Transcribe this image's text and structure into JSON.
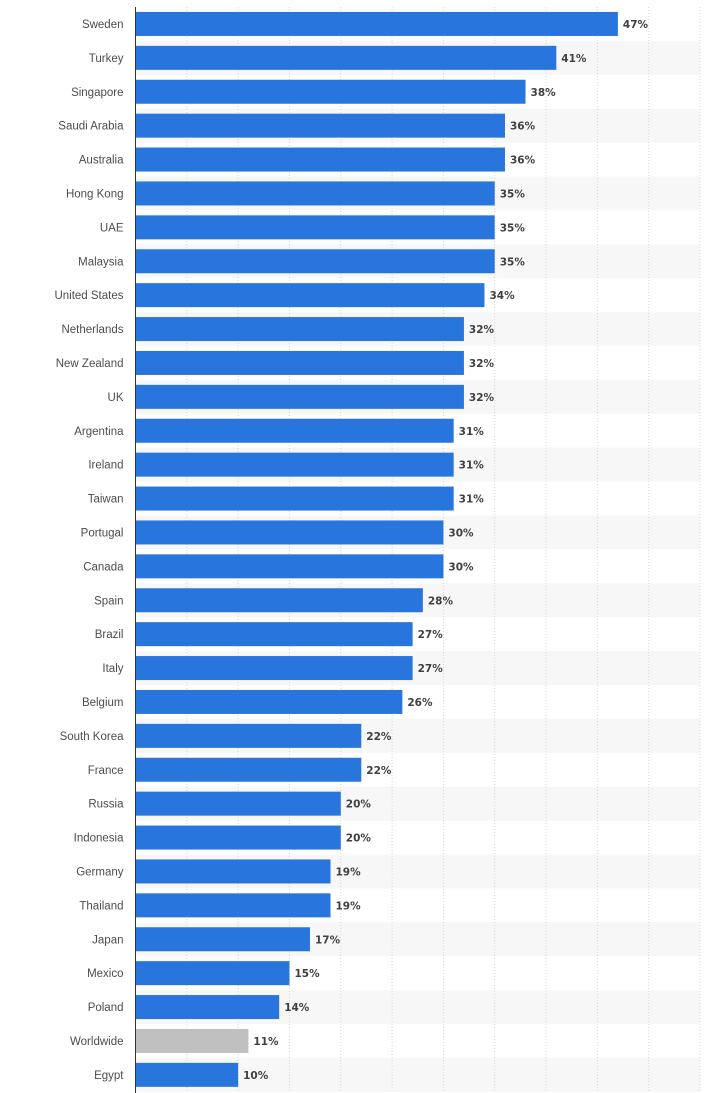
{
  "chart_data": {
    "type": "bar",
    "orientation": "horizontal",
    "categories": [
      "Sweden",
      "Turkey",
      "Singapore",
      "Saudi Arabia",
      "Australia",
      "Hong Kong",
      "UAE",
      "Malaysia",
      "United States",
      "Netherlands",
      "New Zealand",
      "UK",
      "Argentina",
      "Ireland",
      "Taiwan",
      "Portugal",
      "Canada",
      "Spain",
      "Brazil",
      "Italy",
      "Belgium",
      "South Korea",
      "France",
      "Russia",
      "Indonesia",
      "Germany",
      "Thailand",
      "Japan",
      "Mexico",
      "Poland",
      "Worldwide",
      "Egypt"
    ],
    "values": [
      47,
      41,
      38,
      36,
      36,
      35,
      35,
      35,
      34,
      32,
      32,
      32,
      31,
      31,
      31,
      30,
      30,
      28,
      27,
      27,
      26,
      22,
      22,
      20,
      20,
      19,
      19,
      17,
      15,
      14,
      11,
      10
    ],
    "value_labels": [
      "47%",
      "41%",
      "38%",
      "36%",
      "36%",
      "35%",
      "35%",
      "35%",
      "34%",
      "32%",
      "32%",
      "32%",
      "31%",
      "31%",
      "31%",
      "30%",
      "30%",
      "28%",
      "27%",
      "27%",
      "26%",
      "22%",
      "22%",
      "20%",
      "20%",
      "19%",
      "19%",
      "17%",
      "15%",
      "14%",
      "11%",
      "10%"
    ],
    "highlight_category": "Worldwide",
    "xlim": [
      0,
      55
    ],
    "grid": true,
    "title": "",
    "xlabel": "",
    "ylabel": "",
    "colors": {
      "bar": "#2876dd",
      "highlight_bar": "#c0c0c0",
      "band": "#f7f7f7",
      "grid": "#d6d6d6",
      "axis": "#333333"
    }
  }
}
